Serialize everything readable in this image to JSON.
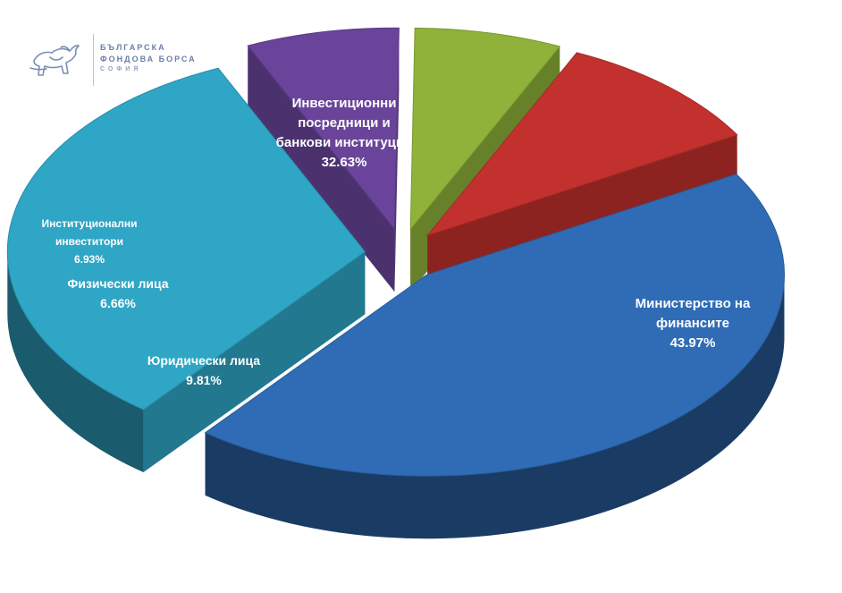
{
  "logo": {
    "line1": "БЪЛГАРСКА",
    "line2": "ФОНДОВА БОРСА",
    "line3": "СОФИЯ",
    "icon": "bull-icon"
  },
  "chart_data": {
    "type": "pie",
    "style": "3d-exploded",
    "title": "",
    "legend": "none",
    "slices": [
      {
        "label_lines": [
          "Министерство на",
          "финансите"
        ],
        "value": 43.97,
        "value_text": "43.97%",
        "color": "#2f6cb5"
      },
      {
        "label_lines": [
          "Инвестиционни",
          "посредници и",
          "банкови институции"
        ],
        "value": 32.63,
        "value_text": "32.63%",
        "color": "#2fa6c6"
      },
      {
        "label_lines": [
          "Институционални",
          "инвеститори"
        ],
        "value": 6.93,
        "value_text": "6.93%",
        "color": "#6a449a"
      },
      {
        "label_lines": [
          "Физически лица"
        ],
        "value": 6.66,
        "value_text": "6.66%",
        "color": "#8fb23a"
      },
      {
        "label_lines": [
          "Юридически лица"
        ],
        "value": 9.81,
        "value_text": "9.81%",
        "color": "#c2312d"
      }
    ]
  }
}
